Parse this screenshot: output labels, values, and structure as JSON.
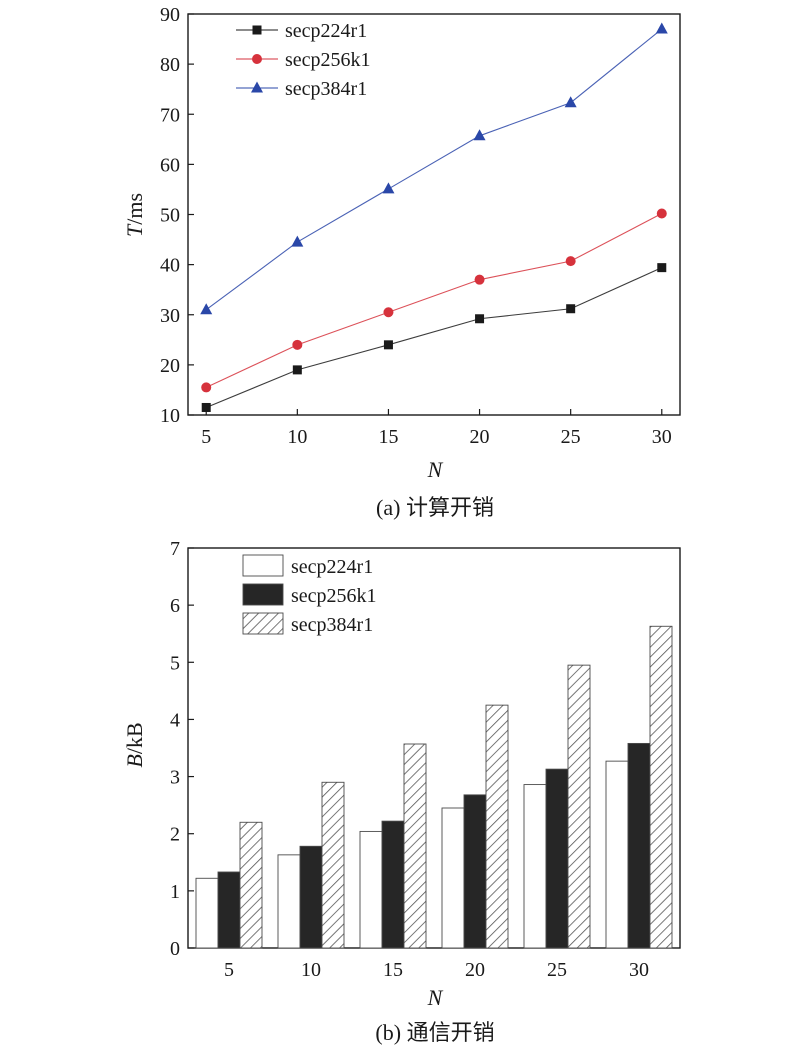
{
  "chart_data": [
    {
      "type": "line",
      "caption": "(a) 计算开销",
      "xlabel_italic": "N",
      "ylabel_italic": "T",
      "ylabel_unit": "/ms",
      "x": [
        5,
        10,
        15,
        20,
        25,
        30
      ],
      "xlim": [
        4,
        31
      ],
      "ylim": [
        10,
        90
      ],
      "yticks": [
        10,
        20,
        30,
        40,
        50,
        60,
        70,
        80,
        90
      ],
      "legend_position": "top-left",
      "grid": false,
      "series": [
        {
          "name": "secp224r1",
          "marker": "square",
          "color": "#1a1a1a",
          "values": [
            11.5,
            19,
            24,
            29.2,
            31.2,
            39.4
          ]
        },
        {
          "name": "secp256k1",
          "marker": "circle",
          "color": "#d6323c",
          "values": [
            15.5,
            24,
            30.5,
            37,
            40.7,
            50.2
          ]
        },
        {
          "name": "secp384r1",
          "marker": "triangle",
          "color": "#2a47a8",
          "values": [
            31,
            44.5,
            55.1,
            65.7,
            72.3,
            87
          ]
        }
      ]
    },
    {
      "type": "bar",
      "caption": "(b) 通信开销",
      "xlabel_italic": "N",
      "ylabel_italic": "B",
      "ylabel_unit": "/kB",
      "categories": [
        "5",
        "10",
        "15",
        "20",
        "25",
        "30"
      ],
      "ylim": [
        0,
        7
      ],
      "yticks": [
        0,
        1,
        2,
        3,
        4,
        5,
        6,
        7
      ],
      "legend_position": "top-left",
      "grid": false,
      "series": [
        {
          "name": "secp224r1",
          "fill": "white",
          "values": [
            1.22,
            1.63,
            2.04,
            2.45,
            2.86,
            3.27
          ]
        },
        {
          "name": "secp256k1",
          "fill": "black",
          "values": [
            1.33,
            1.78,
            2.22,
            2.68,
            3.13,
            3.58
          ]
        },
        {
          "name": "secp384r1",
          "fill": "hatched",
          "values": [
            2.2,
            2.9,
            3.57,
            4.25,
            4.95,
            5.63
          ]
        }
      ]
    }
  ]
}
